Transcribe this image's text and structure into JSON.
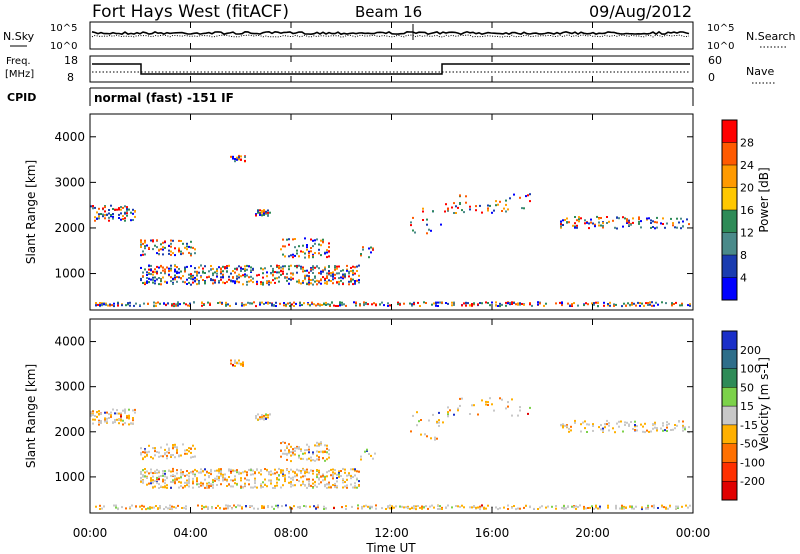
{
  "header": {
    "station": "Fort Hays West (fitACF)",
    "beam": "Beam 16",
    "date": "09/Aug/2012"
  },
  "noise_panel": {
    "left_label": "N.Sky",
    "right_label": "N.Search",
    "yticks": [
      "10^5",
      "10^0"
    ]
  },
  "freq_panel": {
    "left_label_line1": "Freq.",
    "left_label_line2": "[MHz]",
    "left_ticks": [
      "18",
      "8"
    ],
    "right_label": "Nave",
    "right_ticks": [
      "60",
      "0"
    ]
  },
  "cpid_panel": {
    "label": "CPID",
    "text": "normal (fast) -151 IF"
  },
  "chart_data": [
    {
      "type": "heatmap",
      "name": "power",
      "ylabel": "Slant Range [km]",
      "ylim": [
        200,
        4500
      ],
      "yticks": [
        1000,
        2000,
        3000,
        4000
      ],
      "colorbar": {
        "label": "Power [dB]",
        "ticks": [
          "28",
          "24",
          "20",
          "16",
          "12",
          "8",
          "4"
        ],
        "colors": [
          "#ff0000",
          "#ff5a00",
          "#ff9a00",
          "#ffc800",
          "#2e8b57",
          "#4a8a8a",
          "#1a3cb0",
          "#0000ff"
        ]
      }
    },
    {
      "type": "heatmap",
      "name": "velocity",
      "ylabel": "Slant Range [km]",
      "ylim": [
        200,
        4500
      ],
      "yticks": [
        1000,
        2000,
        3000,
        4000
      ],
      "colorbar": {
        "label": "Velocity [m s-1]",
        "ticks": [
          "200",
          "100",
          "50",
          "15",
          "-15",
          "-50",
          "-100",
          "-200"
        ],
        "colors": [
          "#1a2fc8",
          "#2e6e8a",
          "#2e8b57",
          "#7cd24a",
          "#c8c8c8",
          "#ffb000",
          "#ff7000",
          "#ff3000",
          "#e00000"
        ]
      }
    }
  ],
  "time_axis": {
    "label": "Time UT",
    "ticks": [
      "00:00",
      "04:00",
      "08:00",
      "12:00",
      "16:00",
      "20:00",
      "00:00"
    ]
  }
}
